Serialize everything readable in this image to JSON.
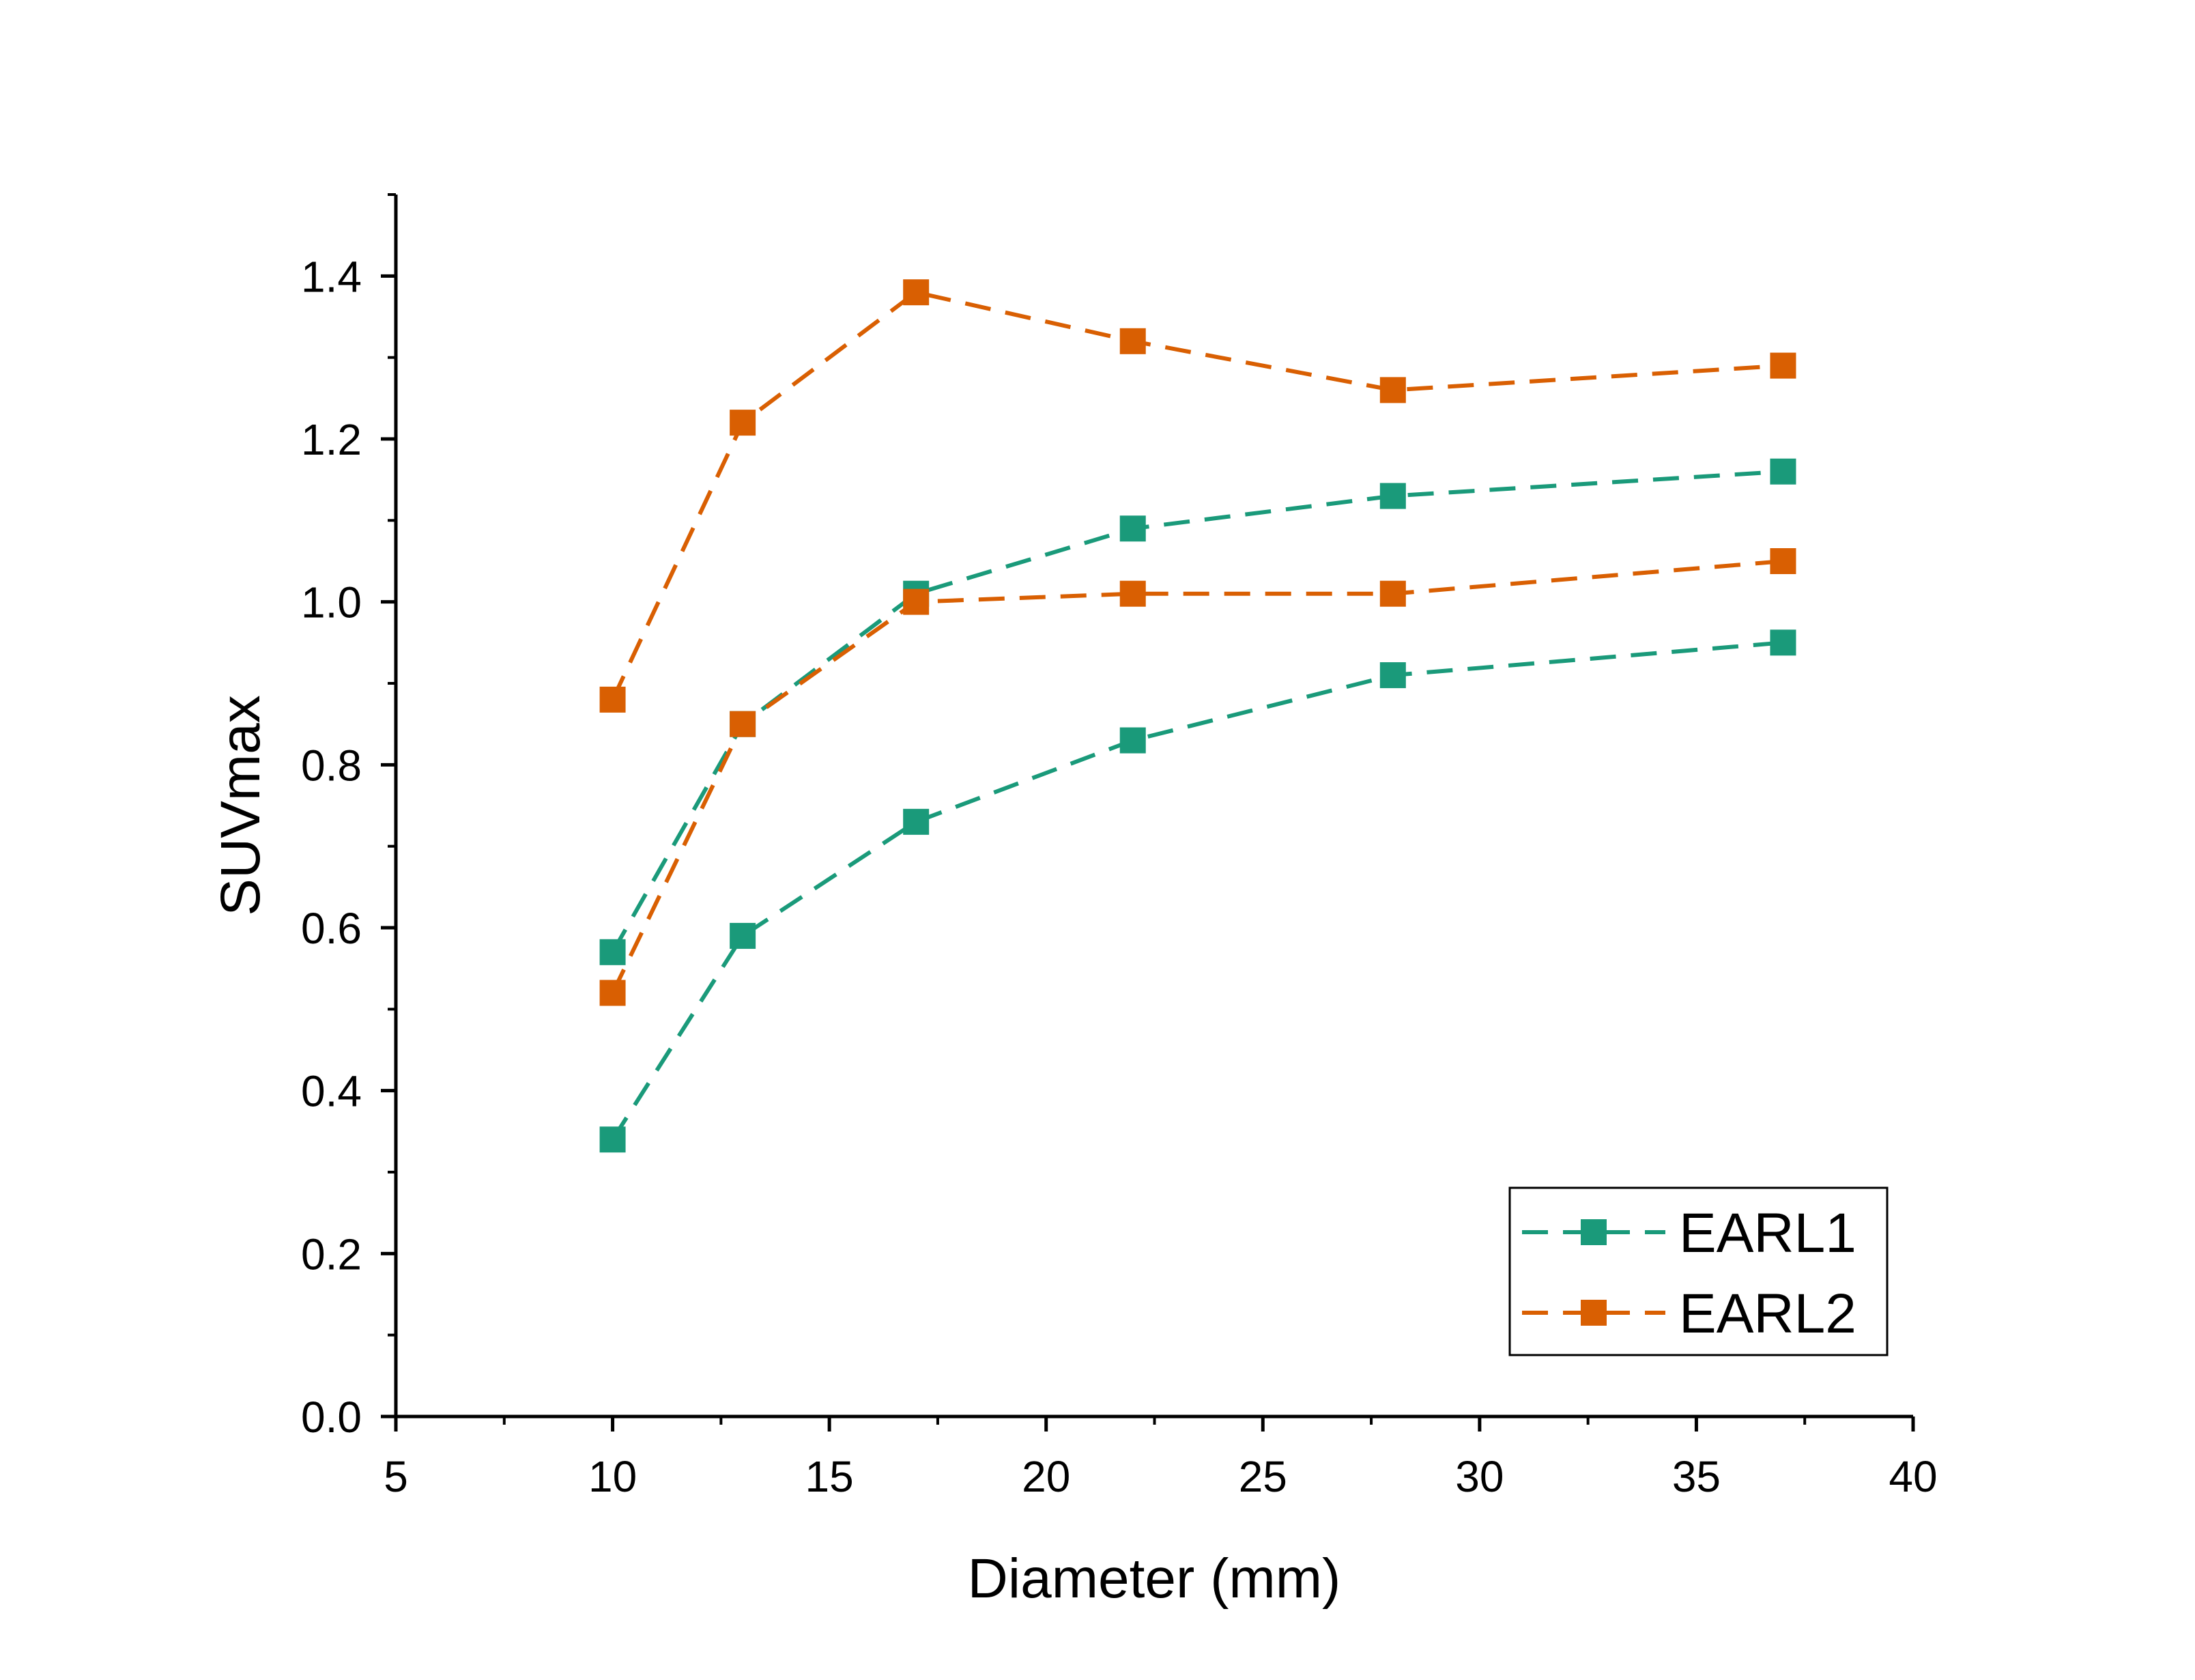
{
  "chart_data": {
    "type": "line",
    "title": "",
    "xlabel": "Diameter (mm)",
    "ylabel": "SUVmax",
    "xlim": [
      5,
      40
    ],
    "ylim": [
      0,
      1.5
    ],
    "xticks": [
      "5",
      "10",
      "15",
      "20",
      "25",
      "30",
      "35",
      "40"
    ],
    "yticks": [
      "0.0",
      "0.2",
      "0.4",
      "0.6",
      "0.8",
      "1.0",
      "1.2",
      "1.4"
    ],
    "grid": false,
    "legend_position": "bottom-right",
    "x": [
      10,
      13,
      17,
      22,
      28,
      37
    ],
    "series": [
      {
        "name": "EARL1",
        "color": "#1a9a7a",
        "values": [
          0.57,
          0.85,
          1.01,
          1.09,
          1.13,
          1.16
        ]
      },
      {
        "name": "EARL1",
        "color": "#1a9a7a",
        "values": [
          0.34,
          0.59,
          0.73,
          0.83,
          0.91,
          0.95
        ]
      },
      {
        "name": "EARL2",
        "color": "#d95f02",
        "values": [
          0.88,
          1.22,
          1.38,
          1.32,
          1.26,
          1.29
        ]
      },
      {
        "name": "EARL2",
        "color": "#d95f02",
        "values": [
          0.52,
          0.85,
          1.0,
          1.01,
          1.01,
          1.05
        ]
      }
    ],
    "legend": [
      {
        "label": "EARL1",
        "color": "#1a9a7a"
      },
      {
        "label": "EARL2",
        "color": "#d95f02"
      }
    ]
  }
}
